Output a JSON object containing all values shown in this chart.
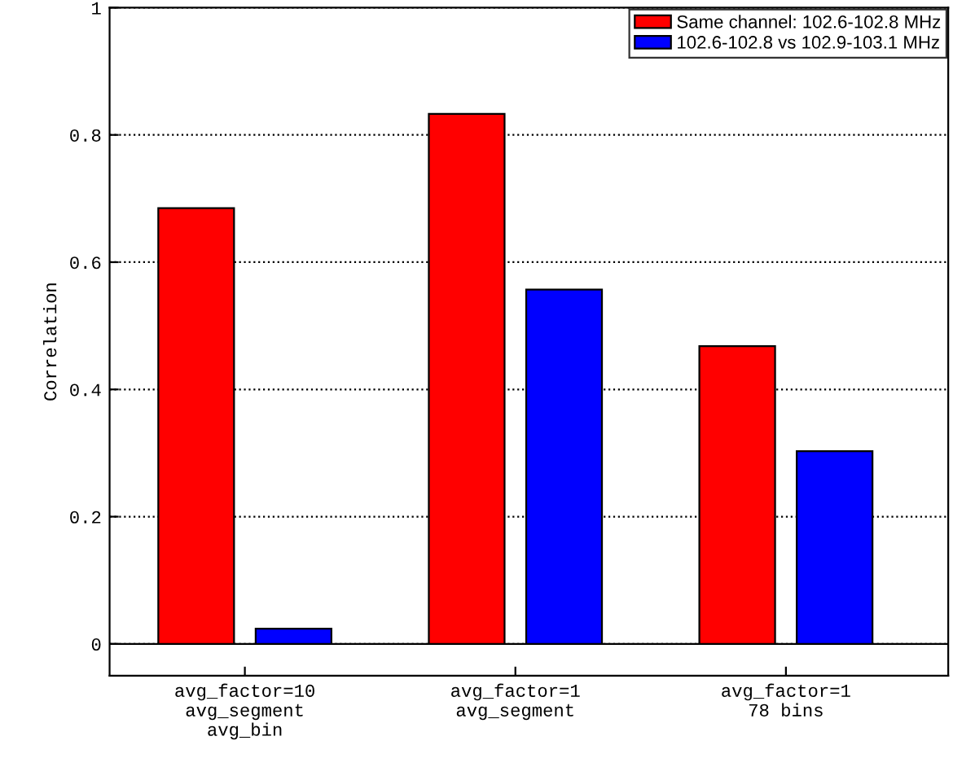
{
  "chart_data": {
    "type": "bar",
    "ylabel": "Correlation",
    "categories": [
      "avg_factor=10\navg_segment\navg_bin",
      "avg_factor=1\navg_segment",
      "avg_factor=1\n78 bins"
    ],
    "series": [
      {
        "name": "Same channel: 102.6-102.8 MHz",
        "color": "#ff0000",
        "values": [
          0.685,
          0.833,
          0.468
        ]
      },
      {
        "name": "102.6-102.8 vs 102.9-103.1 MHz",
        "color": "#0000ff",
        "values": [
          0.024,
          0.557,
          0.303
        ]
      }
    ],
    "ylim": [
      -0.05,
      1
    ],
    "yticks": [
      0,
      0.2,
      0.4,
      0.6,
      0.8,
      1
    ],
    "grid": "y",
    "legend": "top right"
  }
}
